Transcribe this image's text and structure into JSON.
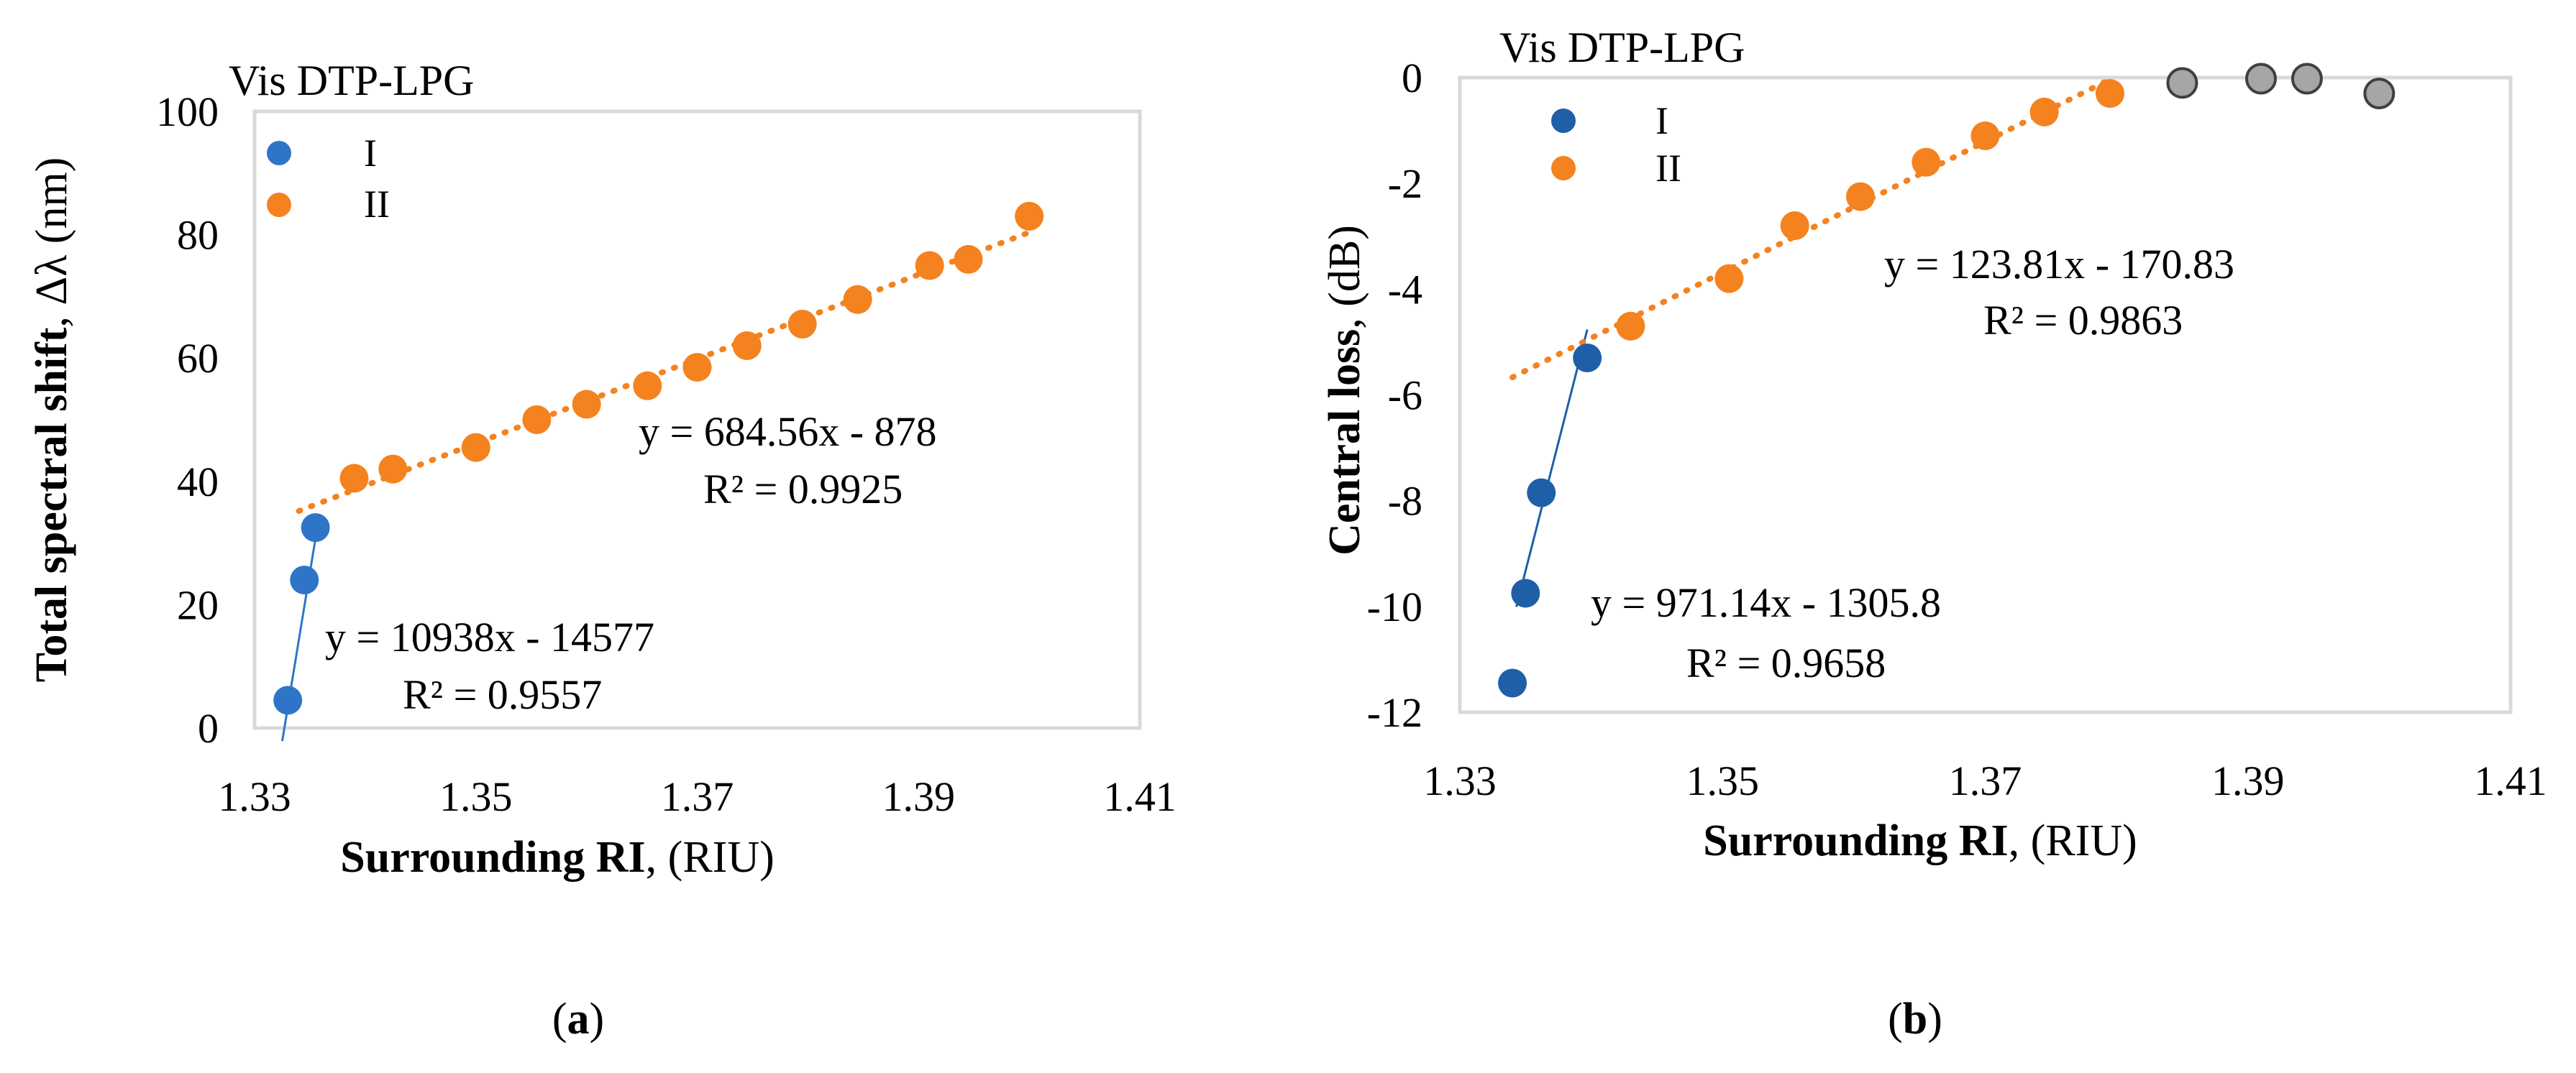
{
  "panel_labels": {
    "a": "(a)",
    "b": "(b)"
  },
  "chart_data": [
    {
      "type": "scatter",
      "panel": "a",
      "title": "Vis DTP-LPG",
      "xlabel_bold": "Surrounding RI",
      "xlabel_rest": ", (RIU)",
      "ylabel_bold": "Total spectral shift",
      "ylabel_rest": ", Δλ (nm)",
      "xlim": [
        1.33,
        1.41
      ],
      "ylim": [
        0,
        100
      ],
      "xticks": [
        "1.33",
        "1.35",
        "1.37",
        "1.39",
        "1.41"
      ],
      "xtick_values": [
        1.33,
        1.35,
        1.37,
        1.39,
        1.41
      ],
      "yticks": [
        "0",
        "20",
        "40",
        "60",
        "80",
        "100"
      ],
      "ytick_values": [
        0,
        20,
        40,
        60,
        80,
        100
      ],
      "legend_position": "top-left",
      "colors": {
        "I": "#2e75c8",
        "II": "#f4821f",
        "excluded": "#a6a6a6",
        "axis_box": "#d9d9d9"
      },
      "series": [
        {
          "name": "I",
          "color": "#2e75c8",
          "points": [
            [
              1.333,
              4.5
            ],
            [
              1.3345,
              24
            ],
            [
              1.3355,
              32.5
            ]
          ]
        },
        {
          "name": "II",
          "color": "#f4821f",
          "points": [
            [
              1.339,
              40.5
            ],
            [
              1.3425,
              42
            ],
            [
              1.35,
              45.5
            ],
            [
              1.3555,
              50
            ],
            [
              1.36,
              52.5
            ],
            [
              1.3655,
              55.5
            ],
            [
              1.37,
              58.5
            ],
            [
              1.3745,
              62
            ],
            [
              1.3795,
              65.5
            ],
            [
              1.3845,
              69.5
            ],
            [
              1.391,
              75
            ],
            [
              1.3945,
              76
            ],
            [
              1.4,
              83
            ]
          ]
        }
      ],
      "trendlines": [
        {
          "series": "I",
          "color": "#2e75c8",
          "dash": false,
          "x_range": [
            1.3325,
            1.3358
          ],
          "equation": "y = 10938x - 14577",
          "r2": "R² = 0.9557"
        },
        {
          "series": "II",
          "color": "#f4821f",
          "dash": true,
          "x_range": [
            1.334,
            1.4005
          ],
          "equation": "y = 684.56x - 878",
          "r2": "R² = 0.9925"
        }
      ]
    },
    {
      "type": "scatter",
      "panel": "b",
      "title": "Vis DTP-LPG",
      "xlabel_bold": "Surrounding RI",
      "xlabel_rest": ", (RIU)",
      "ylabel_bold": "Central loss",
      "ylabel_rest": ", (dB)",
      "xlim": [
        1.33,
        1.41
      ],
      "ylim": [
        -12,
        0
      ],
      "xticks": [
        "1.33",
        "1.35",
        "1.37",
        "1.39",
        "1.41"
      ],
      "xtick_values": [
        1.33,
        1.35,
        1.37,
        1.39,
        1.41
      ],
      "yticks": [
        "-12",
        "-10",
        "-8",
        "-6",
        "-4",
        "-2",
        "0"
      ],
      "ytick_values": [
        -12,
        -10,
        -8,
        -6,
        -4,
        -2,
        0
      ],
      "legend_position": "top-left",
      "colors": {
        "I": "#1f5fa8",
        "II": "#f4821f",
        "excluded": "#a6a6a6",
        "axis_box": "#d9d9d9"
      },
      "series": [
        {
          "name": "I",
          "color": "#1f5fa8",
          "points": [
            [
              1.334,
              -11.45
            ],
            [
              1.335,
              -9.75
            ],
            [
              1.3362,
              -7.85
            ],
            [
              1.3397,
              -5.3
            ]
          ]
        },
        {
          "name": "II",
          "color": "#f4821f",
          "points": [
            [
              1.343,
              -4.7
            ],
            [
              1.3505,
              -3.8
            ],
            [
              1.3555,
              -2.8
            ],
            [
              1.3605,
              -2.25
            ],
            [
              1.3655,
              -1.6
            ],
            [
              1.37,
              -1.1
            ],
            [
              1.3745,
              -0.65
            ],
            [
              1.3795,
              -0.3
            ]
          ]
        },
        {
          "name": "",
          "color": "#a6a6a6",
          "legend": false,
          "points": [
            [
              1.385,
              -0.1
            ],
            [
              1.391,
              -0.02
            ],
            [
              1.3945,
              -0.02
            ],
            [
              1.4,
              -0.3
            ]
          ]
        }
      ],
      "trendlines": [
        {
          "series": "I",
          "color": "#1f5fa8",
          "dash": false,
          "x_range": [
            1.3343,
            1.3397
          ],
          "equation": "y = 971.14x - 1305.8",
          "r2": "R² = 0.9658"
        },
        {
          "series": "II",
          "color": "#f4821f",
          "dash": true,
          "x_range": [
            1.334,
            1.3795
          ],
          "equation": "y = 123.81x - 170.83",
          "r2": "R² = 0.9863"
        }
      ]
    }
  ]
}
